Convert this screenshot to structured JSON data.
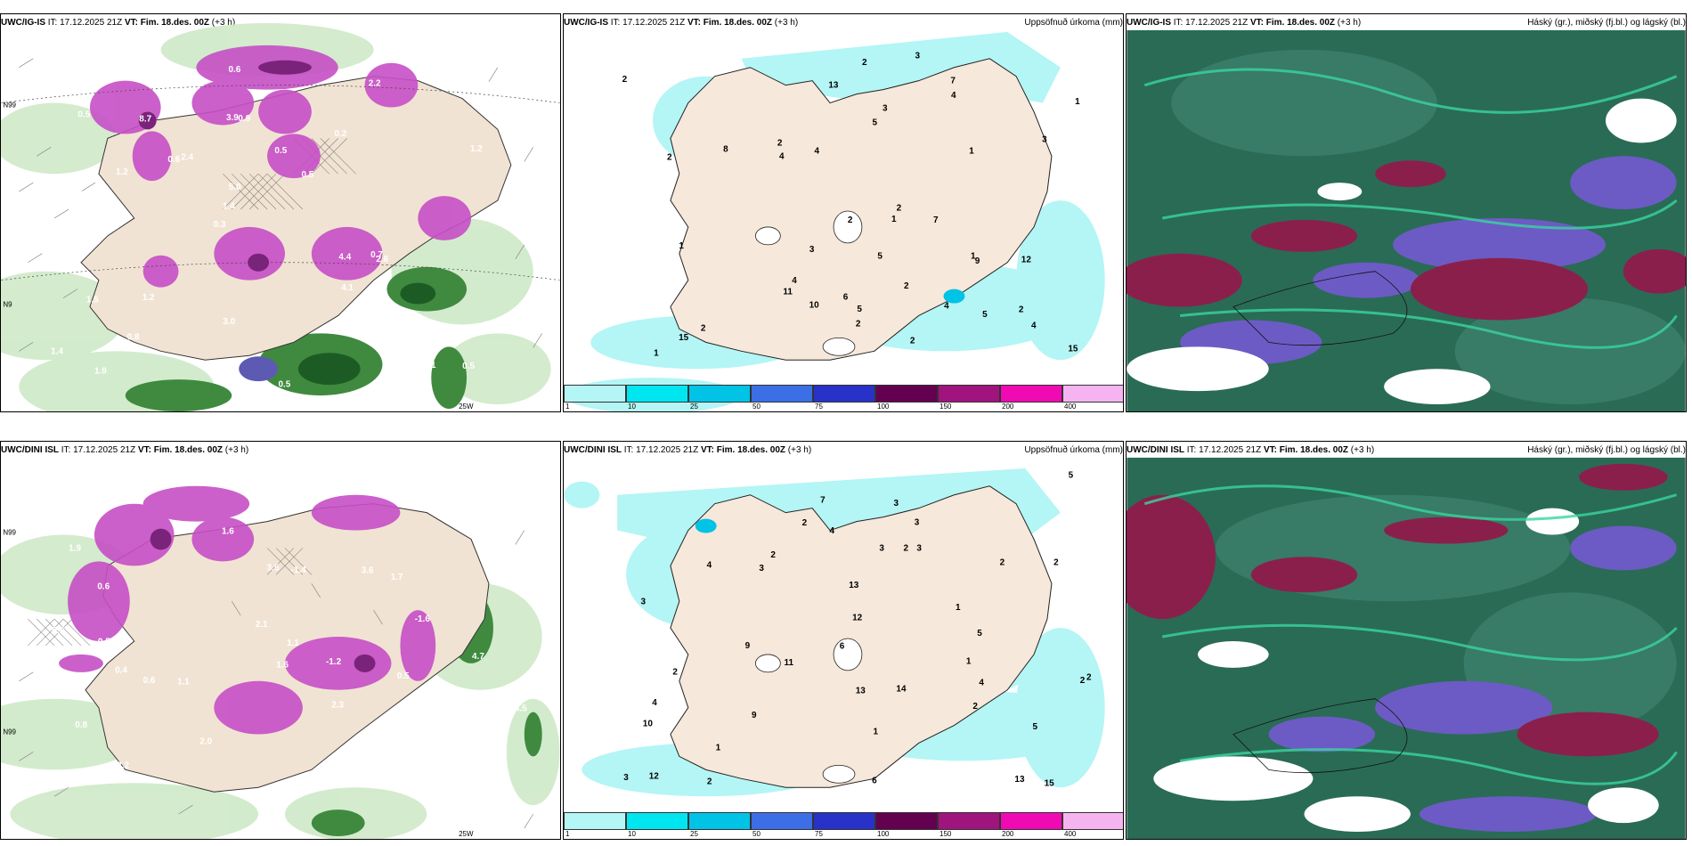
{
  "panels": {
    "p1": {
      "model": "UWC/IG-IS",
      "it": "IT: 17.12.2025 21Z",
      "vt": "VT: Fim. 18.des. 00Z",
      "lead": "(+3 h)",
      "title": ""
    },
    "p2": {
      "model": "UWC/IG-IS",
      "it": "IT: 17.12.2025 21Z",
      "vt": "VT: Fim. 18.des. 00Z",
      "lead": "(+3 h)",
      "title": "Uppsöfnuð úrkoma (mm)"
    },
    "p3": {
      "model": "UWC/IG-IS",
      "it": "IT: 17.12.2025 21Z",
      "vt": "VT: Fim. 18.des. 00Z",
      "lead": "(+3 h)",
      "title": "Háský (gr.), miðský (fj.bl.) og lágský (bl.)"
    },
    "p4": {
      "model": "UWC/DINI ISL",
      "it": "IT: 17.12.2025 21Z",
      "vt": "VT: Fim. 18.des. 00Z",
      "lead": "(+3 h)",
      "title": ""
    },
    "p5": {
      "model": "UWC/DINI ISL",
      "it": "IT: 17.12.2025 21Z",
      "vt": "VT: Fim. 18.des. 00Z",
      "lead": "(+3 h)",
      "title": "Uppsöfnuð úrkoma (mm)"
    },
    "p6": {
      "model": "UWC/DINI ISL",
      "it": "IT: 17.12.2025 21Z",
      "vt": "VT: Fim. 18.des. 00Z",
      "lead": "(+3 h)",
      "title": "Háský (gr.), miðský (fj.bl.) og lágský (bl.)"
    }
  },
  "colorbar": {
    "ticks": [
      "1",
      "10",
      "25",
      "50",
      "75",
      "100",
      "150",
      "200",
      "400"
    ],
    "colors": [
      "#b4f5f5",
      "#00e6f0",
      "#00c3e6",
      "#3c6ee6",
      "#2832c8",
      "#640050",
      "#a0147d",
      "#f00ab4",
      "#f5b4f0"
    ]
  },
  "grid_labels": {
    "lat": "N99",
    "lat2": "N9",
    "lon": "25W"
  },
  "precip_top": [
    "15",
    "12",
    "2",
    "5",
    "13",
    "3",
    "2",
    "7",
    "5",
    "11",
    "15",
    "4",
    "10",
    "2",
    "4",
    "2",
    "1",
    "1",
    "2",
    "1",
    "2",
    "2",
    "2",
    "7",
    "9",
    "4",
    "4",
    "5",
    "3",
    "2",
    "4",
    "3",
    "3",
    "1",
    "1",
    "2",
    "5",
    "1",
    "2",
    "6",
    "8",
    "4"
  ],
  "precip_bottom": [
    "13",
    "15",
    "4",
    "6",
    "5",
    "6",
    "11",
    "12",
    "13",
    "9",
    "4",
    "4",
    "3",
    "5",
    "5",
    "2",
    "2",
    "1",
    "2",
    "2",
    "1",
    "3",
    "3",
    "2",
    "10",
    "12",
    "13",
    "14",
    "3",
    "2",
    "3",
    "4",
    "7",
    "9",
    "1",
    "1",
    "2",
    "2",
    "2",
    "2",
    "3",
    "3"
  ],
  "temp_top": [
    "0.5",
    "0.4",
    "0.6",
    "0.3",
    "0.2",
    "1.9",
    "3.9",
    "0.5",
    "1.5",
    "2.4",
    "1.4",
    "0.8",
    "0.9",
    "0.5",
    "2.6",
    "0.5",
    "0.6",
    "4.9",
    "4.4",
    "1.2",
    "1.4",
    "3.0",
    "5.0",
    "8.7",
    "2.2",
    "1.2",
    "2.1",
    "0.6",
    "0.7",
    "0.5",
    "0.6",
    "1.2",
    "4.1"
  ],
  "temp_bottom": [
    "0.3",
    "0.4",
    "2.3",
    "1.9",
    "0.9",
    "0.6",
    "3.2",
    "1.1",
    "1.7",
    "3.5",
    "3.6",
    "0.8",
    "2.0",
    "1.6",
    "-1.2",
    "0.8",
    "0.5",
    "1.1",
    "0.6",
    "0.7",
    "-2.5",
    "-1.4",
    "-1.6",
    "4.5",
    "4.7",
    "0.5",
    "0.6",
    "1.6",
    "2.1"
  ],
  "cloud_colors": {
    "high": "#2a6b55",
    "mid": "#6c5bc4",
    "low": "#8b1f4c",
    "clear": "#ffffff",
    "edge": "#3ad6a0"
  }
}
